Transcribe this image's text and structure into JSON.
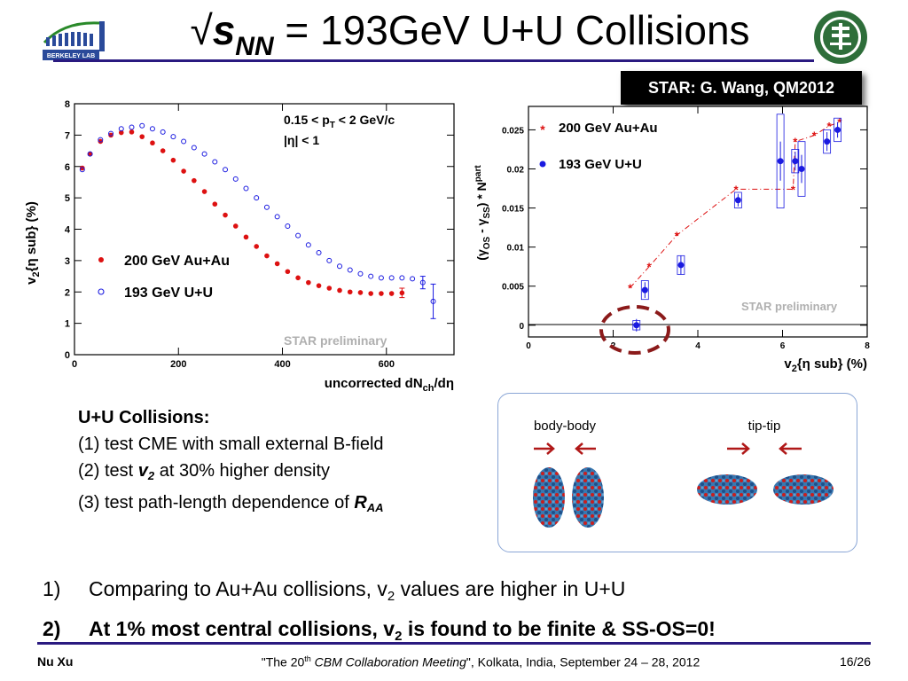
{
  "slide": {
    "title_rest": " = 193GeV U+U Collisions",
    "title_s": "s",
    "title_sub": "NN",
    "star_reference": "STAR: G. Wang, QM2012",
    "uu_text": {
      "heading": "U+U Collisions:",
      "item1": "(1) test CME with small external B-field",
      "item2_pre": "(2) test ",
      "item2_var": "v",
      "item2_sub": "2",
      "item2_post": " at 30% higher density",
      "item3_pre": "(3) test path-length dependence of ",
      "item3_var": "R",
      "item3_sub": "AA"
    },
    "nuclei": {
      "left_label": "body-body",
      "right_label": "tip-tip"
    },
    "conclusions": [
      {
        "num": "1)",
        "pre": "Comparing to Au+Au collisions, v",
        "sub": "2",
        "post": " values are higher in U+U"
      },
      {
        "num": "2)",
        "pre": "At 1% most central collisions, v",
        "sub": "2",
        "post": " is found to be finite & SS-OS=0!"
      }
    ],
    "footer": {
      "author": "Nu Xu",
      "meeting_pre": "\"The 20",
      "meeting_sup": "th",
      "meeting_name": " CBM Collaboration Meeting",
      "meeting_post": "\", Kolkata, India, September 24 – 28,  2012",
      "page": "16/26"
    }
  },
  "chart_data": [
    {
      "type": "scatter",
      "xlabel": "uncorrected dN",
      "xlabel_sub": "ch",
      "xlabel_post": "/dη",
      "ylabel": "v",
      "ylabel_sub": "2",
      "ylabel_post": "{η sub} (%)",
      "xlim": [
        0,
        730
      ],
      "ylim": [
        0,
        8
      ],
      "xticks": [
        0,
        200,
        400,
        600
      ],
      "yticks": [
        0,
        1,
        2,
        3,
        4,
        5,
        6,
        7,
        8
      ],
      "annotation_line1": "0.15 < p",
      "annotation_line1_sub": "T",
      "annotation_line1_post": " < 2 GeV/c",
      "annotation_line2": "|η| < 1",
      "watermark": "STAR preliminary",
      "legend_placement": "bottom-left",
      "series": [
        {
          "name": "200 GeV Au+Au",
          "marker": "filled-circle",
          "color": "#dd1111",
          "x": [
            15,
            30,
            50,
            70,
            90,
            110,
            130,
            150,
            170,
            190,
            210,
            230,
            250,
            270,
            290,
            310,
            330,
            350,
            370,
            390,
            410,
            430,
            450,
            470,
            490,
            510,
            530,
            550,
            570,
            590,
            610,
            630
          ],
          "y": [
            5.95,
            6.4,
            6.8,
            7.0,
            7.08,
            7.1,
            6.95,
            6.75,
            6.5,
            6.2,
            5.85,
            5.55,
            5.2,
            4.8,
            4.45,
            4.1,
            3.75,
            3.45,
            3.15,
            2.9,
            2.65,
            2.45,
            2.3,
            2.2,
            2.12,
            2.05,
            2.0,
            1.98,
            1.95,
            1.95,
            1.95,
            1.97
          ]
        },
        {
          "name": "193 GeV U+U",
          "marker": "open-circle",
          "color": "#1a1ae0",
          "x": [
            15,
            30,
            50,
            70,
            90,
            110,
            130,
            150,
            170,
            190,
            210,
            230,
            250,
            270,
            290,
            310,
            330,
            350,
            370,
            390,
            410,
            430,
            450,
            470,
            490,
            510,
            530,
            550,
            570,
            590,
            610,
            630,
            650,
            670,
            690
          ],
          "y": [
            5.9,
            6.4,
            6.85,
            7.05,
            7.2,
            7.25,
            7.3,
            7.2,
            7.1,
            6.95,
            6.8,
            6.6,
            6.4,
            6.15,
            5.9,
            5.6,
            5.3,
            5.0,
            4.7,
            4.4,
            4.1,
            3.8,
            3.5,
            3.25,
            3.0,
            2.82,
            2.7,
            2.58,
            2.5,
            2.45,
            2.45,
            2.45,
            2.42,
            2.3,
            1.7
          ]
        }
      ]
    },
    {
      "type": "scatter",
      "xlabel": "v",
      "xlabel_sub": "2",
      "xlabel_post": "{η sub} (%)",
      "ylabel": "(γ",
      "ylabel_sub1": "OS",
      "ylabel_mid": " - γ",
      "ylabel_sub2": "SS",
      "ylabel_post": ") * N",
      "ylabel_sub3": "part",
      "xlim": [
        0,
        8
      ],
      "ylim": [
        -0.0015,
        0.028
      ],
      "xticks": [
        0,
        2,
        4,
        6,
        8
      ],
      "yticks": [
        0,
        0.005,
        0.01,
        0.015,
        0.02,
        0.025
      ],
      "ytick_labels": [
        "0",
        "0.005",
        "0.01",
        "0.015",
        "0.02",
        "0.025"
      ],
      "watermark": "STAR preliminary",
      "legend_placement": "top-left",
      "series": [
        {
          "name": "200 GeV Au+Au",
          "marker": "star",
          "color": "#dd1111",
          "x": [
            2.4,
            2.85,
            3.5,
            4.9,
            6.25,
            6.3,
            6.75,
            7.1,
            7.35
          ],
          "y": [
            0.0048,
            0.0075,
            0.0115,
            0.0174,
            0.0174,
            0.0235,
            0.0243,
            0.0255,
            0.026
          ]
        },
        {
          "name": "193 GeV U+U",
          "marker": "filled-circle",
          "color": "#1a1ae0",
          "x": [
            2.55,
            2.75,
            3.6,
            4.95,
            5.95,
            6.3,
            6.45,
            7.05,
            7.3
          ],
          "y": [
            0.0,
            0.0045,
            0.0077,
            0.016,
            0.021,
            0.021,
            0.02,
            0.0235,
            0.025
          ]
        }
      ]
    }
  ]
}
